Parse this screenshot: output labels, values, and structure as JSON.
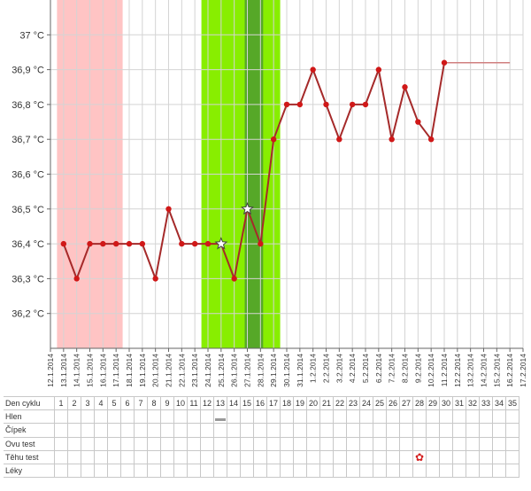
{
  "colors": {
    "line": "#a52a2a",
    "point": "#d01818",
    "period_band": "#ffc4c4",
    "fertile_band": "#88ee00",
    "ovulation_band": "#56a828",
    "grid": "#d4d4d4",
    "marker": "#d42020"
  },
  "chart_data": {
    "type": "line",
    "title": "",
    "xlabel": "",
    "ylabel": "",
    "ylim": [
      36.1,
      37.1
    ],
    "ytick_labels": [
      "36,2 °C",
      "36,3 °C",
      "36,4 °C",
      "36,5 °C",
      "36,6 °C",
      "36,7 °C",
      "36,8 °C",
      "36,9 °C",
      "37 °C"
    ],
    "y_ticks": [
      36.2,
      36.3,
      36.4,
      36.5,
      36.6,
      36.7,
      36.8,
      36.9,
      37.0
    ],
    "dates": [
      "12.1.2014",
      "13.1.2014",
      "14.1.2014",
      "15.1.2014",
      "16.1.2014",
      "17.1.2014",
      "18.1.2014",
      "19.1.2014",
      "20.1.2014",
      "21.1.2014",
      "22.1.2014",
      "23.1.2014",
      "24.1.2014",
      "25.1.2014",
      "26.1.2014",
      "27.1.2014",
      "28.1.2014",
      "29.1.2014",
      "30.1.2014",
      "31.1.2014",
      "1.2.2014",
      "2.2.2014",
      "3.2.2014",
      "4.2.2014",
      "5.2.2014",
      "6.2.2014",
      "7.2.2014",
      "8.2.2014",
      "9.2.2014",
      "10.2.2014",
      "11.2.2014",
      "12.2.2014",
      "13.2.2014",
      "14.2.2014",
      "15.2.2014",
      "16.2.2014",
      "17.2.2014"
    ],
    "series": [
      {
        "values": [
          null,
          36.4,
          36.3,
          36.4,
          36.4,
          36.4,
          36.4,
          36.4,
          36.3,
          36.5,
          36.4,
          36.4,
          36.4,
          36.4,
          36.3,
          36.5,
          36.4,
          36.7,
          36.8,
          36.8,
          36.9,
          36.8,
          36.7,
          36.8,
          36.8,
          36.9,
          36.7,
          36.85,
          36.75,
          36.7,
          36.92,
          null,
          null,
          null,
          null,
          null,
          null
        ]
      }
    ],
    "starred_dates": [
      "25.1.2014",
      "27.1.2014"
    ],
    "coverline": {
      "value": 36.92,
      "from": "11.2.2014",
      "to": "16.2.2014"
    },
    "bands": {
      "period": {
        "from": "13.1.2014",
        "to": "17.1.2014"
      },
      "fertile": {
        "from": "24.1.2014",
        "to": "29.1.2014"
      },
      "ovulation": {
        "from": "27.1.2014",
        "to": "28.1.2014"
      }
    },
    "grid": true
  },
  "table": {
    "rows": [
      "Den cyklu",
      "Hlen",
      "Čípek",
      "Ovu test",
      "Těhu test",
      "Léky"
    ],
    "cycle_days": [
      "1",
      "2",
      "3",
      "4",
      "5",
      "6",
      "7",
      "8",
      "9",
      "10",
      "11",
      "12",
      "13",
      "14",
      "15",
      "16",
      "17",
      "18",
      "19",
      "20",
      "21",
      "22",
      "23",
      "24",
      "25",
      "26",
      "27",
      "28",
      "29",
      "30",
      "31",
      "32",
      "33",
      "34",
      "35"
    ],
    "mucus_day": 13,
    "pregnancy_test": {
      "day": 28,
      "icon": "flower-icon"
    }
  }
}
